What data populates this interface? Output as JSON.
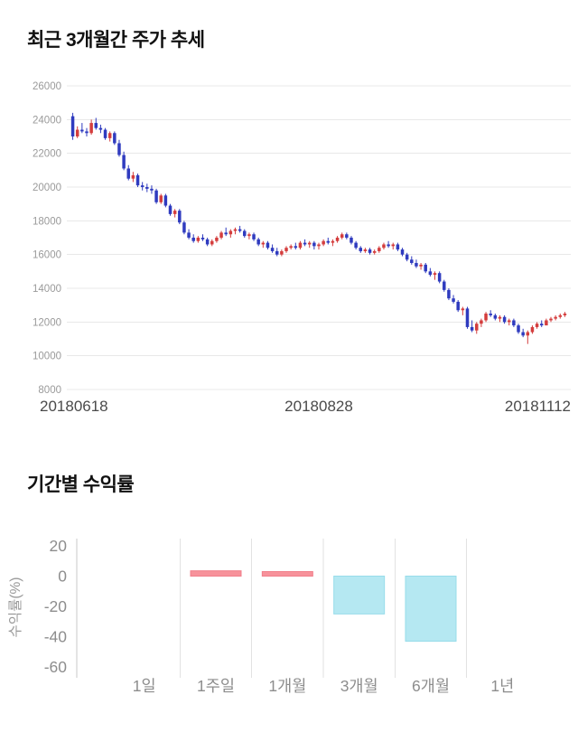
{
  "chart_data": [
    {
      "type": "candlestick",
      "title": "최근 3개월간 주가 추세",
      "ylim": [
        8000,
        26000
      ],
      "y_ticks": [
        26000,
        24000,
        22000,
        20000,
        18000,
        16000,
        14000,
        12000,
        10000,
        8000
      ],
      "x_tick_labels": [
        "20180618",
        "20180828",
        "20181112"
      ],
      "up_color": "#d43d3d",
      "down_color": "#2f3bbf",
      "grid_color": "#e8e8e8",
      "tick_label_color": "#9a9a9a",
      "x_label_color": "#4a4a4a",
      "candles": [
        [
          24200,
          24400,
          22800,
          23000
        ],
        [
          23000,
          23600,
          22900,
          23400
        ],
        [
          23400,
          23800,
          23200,
          23300
        ],
        [
          23300,
          23500,
          23000,
          23200
        ],
        [
          23200,
          24000,
          23100,
          23800
        ],
        [
          23800,
          24100,
          23400,
          23500
        ],
        [
          23500,
          23700,
          23200,
          23400
        ],
        [
          23400,
          23500,
          22800,
          22900
        ],
        [
          22900,
          23300,
          22700,
          23200
        ],
        [
          23200,
          23300,
          22500,
          22600
        ],
        [
          22600,
          22800,
          21800,
          21900
        ],
        [
          21900,
          22100,
          21000,
          21100
        ],
        [
          21100,
          21300,
          20400,
          20500
        ],
        [
          20500,
          20900,
          20300,
          20700
        ],
        [
          20700,
          20800,
          20000,
          20100
        ],
        [
          20100,
          20300,
          19800,
          20000
        ],
        [
          20000,
          20200,
          19700,
          19900
        ],
        [
          19900,
          20100,
          19600,
          19800
        ],
        [
          19800,
          19900,
          19000,
          19100
        ],
        [
          19100,
          19600,
          19000,
          19500
        ],
        [
          19500,
          19600,
          18800,
          18900
        ],
        [
          18900,
          19000,
          18300,
          18400
        ],
        [
          18400,
          18700,
          18200,
          18600
        ],
        [
          18600,
          18700,
          17800,
          17900
        ],
        [
          17900,
          18000,
          17200,
          17300
        ],
        [
          17300,
          17500,
          16900,
          17000
        ],
        [
          17000,
          17200,
          16700,
          16800
        ],
        [
          16800,
          17100,
          16700,
          17000
        ],
        [
          17000,
          17200,
          16800,
          16900
        ],
        [
          16900,
          17000,
          16500,
          16600
        ],
        [
          16600,
          16900,
          16500,
          16800
        ],
        [
          16800,
          17100,
          16700,
          17000
        ],
        [
          17000,
          17400,
          16900,
          17300
        ],
        [
          17300,
          17600,
          17100,
          17200
        ],
        [
          17200,
          17500,
          17000,
          17400
        ],
        [
          17400,
          17600,
          17200,
          17500
        ],
        [
          17500,
          17700,
          17300,
          17400
        ],
        [
          17400,
          17500,
          17000,
          17100
        ],
        [
          17100,
          17300,
          16900,
          17200
        ],
        [
          17200,
          17300,
          16800,
          16900
        ],
        [
          16900,
          17000,
          16500,
          16600
        ],
        [
          16600,
          16800,
          16400,
          16700
        ],
        [
          16700,
          16800,
          16300,
          16400
        ],
        [
          16400,
          16600,
          16100,
          16200
        ],
        [
          16200,
          16400,
          15900,
          16000
        ],
        [
          16000,
          16300,
          15900,
          16200
        ],
        [
          16200,
          16500,
          16100,
          16400
        ],
        [
          16400,
          16600,
          16300,
          16500
        ],
        [
          16500,
          16700,
          16300,
          16400
        ],
        [
          16400,
          16800,
          16300,
          16700
        ],
        [
          16700,
          16900,
          16500,
          16600
        ],
        [
          16600,
          16800,
          16400,
          16700
        ],
        [
          16700,
          16800,
          16300,
          16500
        ],
        [
          16500,
          16700,
          16300,
          16600
        ],
        [
          16600,
          16900,
          16500,
          16800
        ],
        [
          16800,
          17000,
          16600,
          16700
        ],
        [
          16700,
          16900,
          16500,
          16800
        ],
        [
          16800,
          17100,
          16700,
          17000
        ],
        [
          17000,
          17300,
          16900,
          17200
        ],
        [
          17200,
          17300,
          16900,
          17000
        ],
        [
          17000,
          17100,
          16600,
          16700
        ],
        [
          16700,
          16800,
          16300,
          16400
        ],
        [
          16400,
          16500,
          16100,
          16200
        ],
        [
          16200,
          16400,
          16100,
          16300
        ],
        [
          16300,
          16400,
          16000,
          16100
        ],
        [
          16100,
          16300,
          16000,
          16200
        ],
        [
          16200,
          16500,
          16100,
          16400
        ],
        [
          16400,
          16700,
          16300,
          16600
        ],
        [
          16600,
          16800,
          16400,
          16500
        ],
        [
          16500,
          16700,
          16300,
          16600
        ],
        [
          16600,
          16700,
          16200,
          16300
        ],
        [
          16300,
          16400,
          15900,
          16000
        ],
        [
          16000,
          16100,
          15600,
          15700
        ],
        [
          15700,
          15900,
          15400,
          15500
        ],
        [
          15500,
          15700,
          15200,
          15300
        ],
        [
          15300,
          15500,
          15100,
          15400
        ],
        [
          15400,
          15500,
          14900,
          15000
        ],
        [
          15000,
          15200,
          14700,
          14800
        ],
        [
          14800,
          15000,
          14500,
          14900
        ],
        [
          14900,
          15000,
          14300,
          14400
        ],
        [
          14400,
          14500,
          13800,
          13900
        ],
        [
          13900,
          14000,
          13300,
          13400
        ],
        [
          13400,
          13600,
          13100,
          13200
        ],
        [
          13200,
          13300,
          12600,
          12700
        ],
        [
          12700,
          12900,
          12400,
          12800
        ],
        [
          12800,
          12900,
          11600,
          11700
        ],
        [
          11700,
          12100,
          11400,
          11500
        ],
        [
          11500,
          12000,
          11300,
          11900
        ],
        [
          11900,
          12200,
          11700,
          12100
        ],
        [
          12100,
          12600,
          12000,
          12500
        ],
        [
          12500,
          12700,
          12300,
          12400
        ],
        [
          12400,
          12500,
          12100,
          12200
        ],
        [
          12200,
          12400,
          12000,
          12300
        ],
        [
          12300,
          12400,
          11900,
          12000
        ],
        [
          12000,
          12200,
          11800,
          12100
        ],
        [
          12100,
          12200,
          11700,
          11800
        ],
        [
          11800,
          11900,
          11300,
          11400
        ],
        [
          11400,
          11600,
          11100,
          11200
        ],
        [
          11200,
          11500,
          10700,
          11400
        ],
        [
          11400,
          11800,
          11300,
          11700
        ],
        [
          11700,
          12000,
          11600,
          11900
        ],
        [
          11900,
          12100,
          11700,
          11800
        ],
        [
          11800,
          12200,
          11800,
          12100
        ],
        [
          12100,
          12300,
          12000,
          12200
        ],
        [
          12200,
          12400,
          12100,
          12300
        ],
        [
          12300,
          12500,
          12200,
          12400
        ],
        [
          12400,
          12600,
          12300,
          12500
        ]
      ]
    },
    {
      "type": "bar",
      "title": "기간별 수익률",
      "ylabel": "수익률(%)",
      "ylim": [
        -60,
        20
      ],
      "y_ticks": [
        20,
        0,
        -20,
        -40,
        -60
      ],
      "categories": [
        "1일",
        "1주일",
        "1개월",
        "3개월",
        "6개월",
        "1년"
      ],
      "values": [
        0,
        3.5,
        3,
        -25,
        -43,
        0
      ],
      "positive_color": "#f7929b",
      "positive_border": "#f17f8b",
      "negative_color": "#b5e8f2",
      "negative_border": "#97dcea",
      "axis_color": "#c9c9c9",
      "separator_color": "#e2e2e2",
      "tick_label_color": "#8d8d8d",
      "ylabel_color": "#9a9a9a"
    }
  ]
}
